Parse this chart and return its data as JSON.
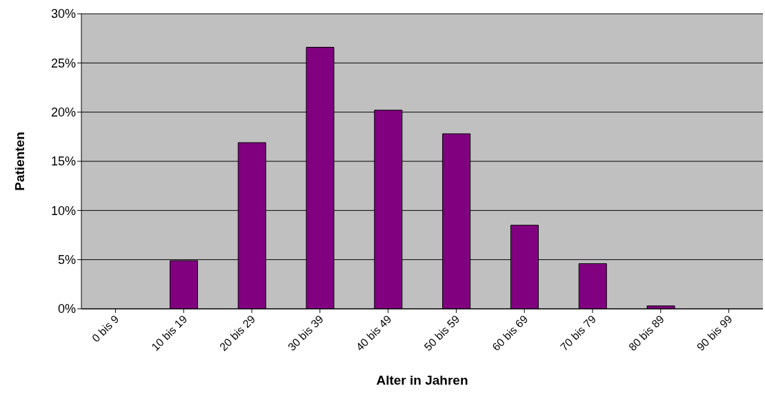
{
  "chart_data": {
    "type": "bar",
    "xlabel": "Alter in Jahren",
    "ylabel": "Patienten",
    "categories": [
      "0 bis 9",
      "10 bis 19",
      "20 bis 29",
      "30 bis 39",
      "40 bis 49",
      "50 bis 59",
      "60 bis 69",
      "70 bis 79",
      "80 bis 89",
      "90 bis 99"
    ],
    "values": [
      0,
      4.9,
      16.9,
      26.6,
      20.2,
      17.8,
      8.5,
      4.6,
      0.3,
      0
    ],
    "color": "#800080",
    "ylim": [
      0,
      30
    ],
    "yticks": [
      {
        "value": 0,
        "label": "0%"
      },
      {
        "value": 5,
        "label": "5%"
      },
      {
        "value": 10,
        "label": "10%"
      },
      {
        "value": 15,
        "label": "15%"
      },
      {
        "value": 20,
        "label": "20%"
      },
      {
        "value": 25,
        "label": "25%"
      },
      {
        "value": 30,
        "label": "30%"
      }
    ],
    "grid": "y",
    "legend": false
  }
}
